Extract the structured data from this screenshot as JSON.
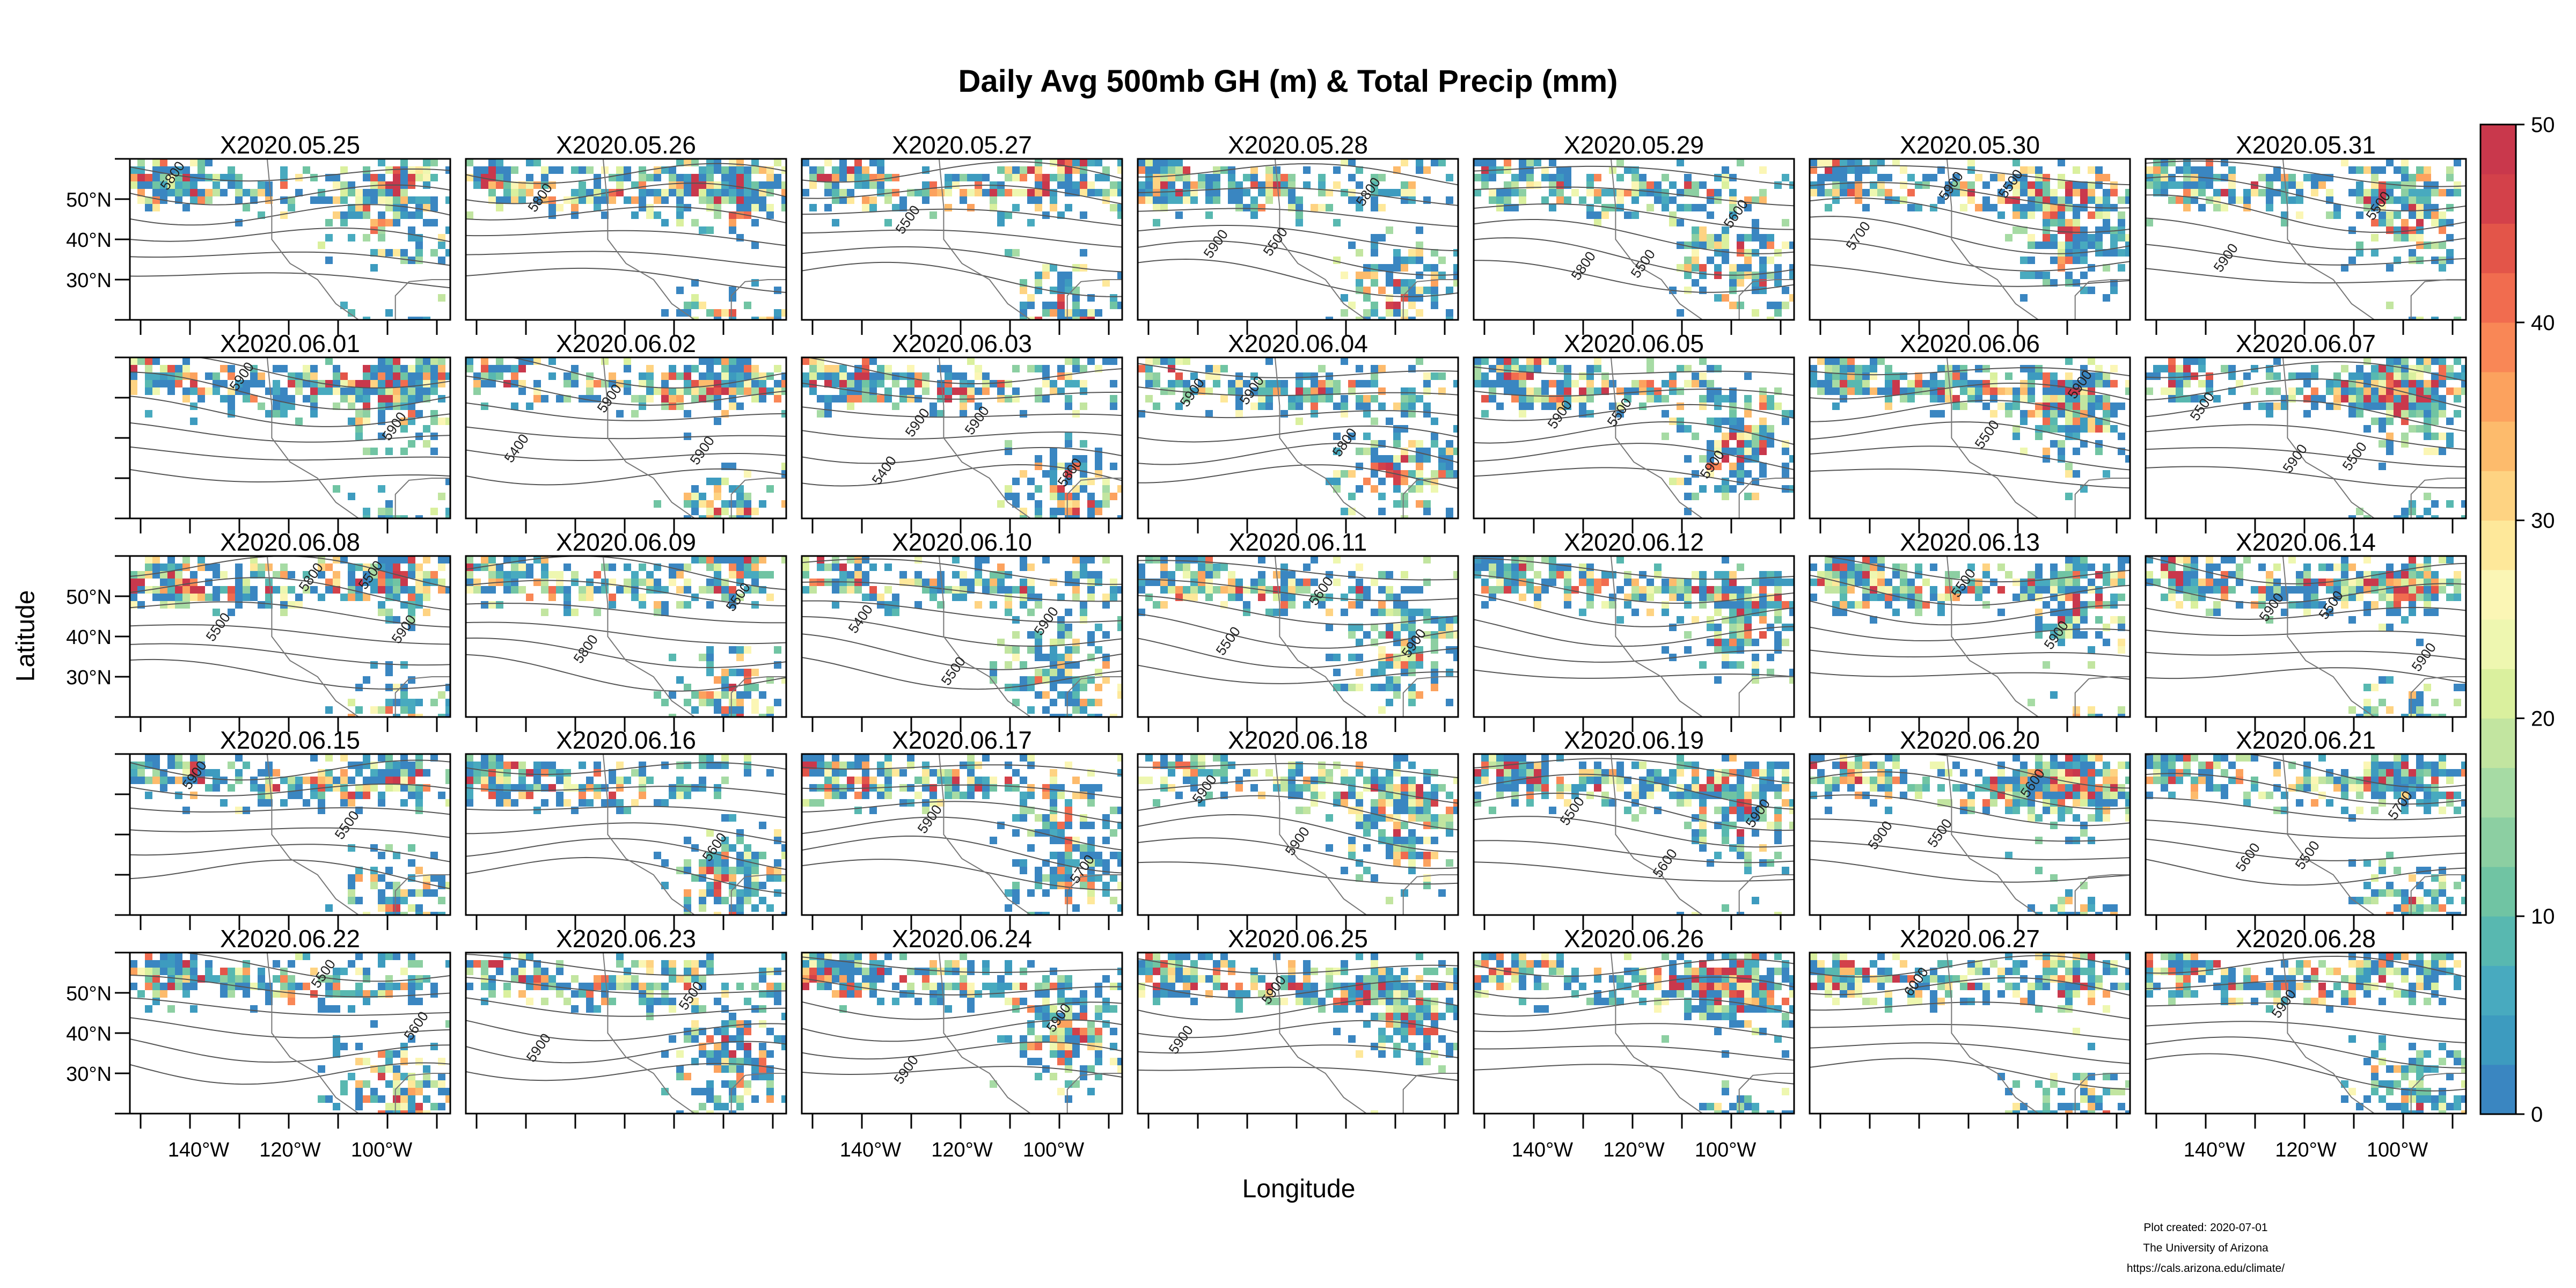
{
  "chart_data": {
    "type": "heatmap",
    "title": "Daily Avg 500mb GH (m) & Total Precip (mm)",
    "xlabel": "Longitude",
    "ylabel": "Latitude",
    "panel_titles": [
      "X2020.05.25",
      "X2020.05.26",
      "X2020.05.27",
      "X2020.05.28",
      "X2020.05.29",
      "X2020.05.30",
      "X2020.05.31",
      "X2020.06.01",
      "X2020.06.02",
      "X2020.06.03",
      "X2020.06.04",
      "X2020.06.05",
      "X2020.06.06",
      "X2020.06.07",
      "X2020.06.08",
      "X2020.06.09",
      "X2020.06.10",
      "X2020.06.11",
      "X2020.06.12",
      "X2020.06.13",
      "X2020.06.14",
      "X2020.06.15",
      "X2020.06.16",
      "X2020.06.17",
      "X2020.06.18",
      "X2020.06.19",
      "X2020.06.20",
      "X2020.06.21",
      "X2020.06.22",
      "X2020.06.23",
      "X2020.06.24",
      "X2020.06.25",
      "X2020.06.26",
      "X2020.06.27",
      "X2020.06.28"
    ],
    "lon_range": [
      -155,
      -85
    ],
    "lat_range": [
      20,
      60
    ],
    "x_ticks": [
      -140,
      -120,
      -100
    ],
    "x_tick_labels": [
      "140°W",
      "120°W",
      "100°W"
    ],
    "y_ticks": [
      30,
      40,
      50
    ],
    "y_tick_labels": [
      "30°N",
      "40°N",
      "50°N"
    ],
    "colorbar": {
      "label": "Total Precip (mm)",
      "range": [
        0,
        50
      ],
      "ticks": [
        0,
        10,
        20,
        30,
        40,
        50
      ],
      "tick_labels": [
        "0",
        "10",
        "20",
        "30",
        "40",
        "50"
      ],
      "colors": [
        "#3a86c1",
        "#3d9bbf",
        "#48aabf",
        "#58b8b0",
        "#70c4a3",
        "#8ccfa2",
        "#a6dba4",
        "#c2e5a0",
        "#daf09e",
        "#eef7b0",
        "#fbf6b5",
        "#fee89a",
        "#fed382",
        "#fdbb6c",
        "#fca25e",
        "#f98756",
        "#f16c4f",
        "#e35549",
        "#d3414a",
        "#c9384c"
      ]
    },
    "contour_labels": [
      [
        "5800"
      ],
      [
        "5800"
      ],
      [
        "5500"
      ],
      [
        "5500",
        "5800",
        "5900"
      ],
      [
        "5500",
        "5600",
        "5800"
      ],
      [
        "5500",
        "5700",
        "5900"
      ],
      [
        "5500",
        "5900"
      ],
      [
        "5900",
        "5900"
      ],
      [
        "5400",
        "5900",
        "5900"
      ],
      [
        "5400",
        "5900",
        "5800",
        "5900"
      ],
      [
        "5900",
        "5800",
        "5900"
      ],
      [
        "5500",
        "5900",
        "5900"
      ],
      [
        "5500",
        "5900"
      ],
      [
        "5500",
        "5500",
        "5900"
      ],
      [
        "5500",
        "5500",
        "5800",
        "5900"
      ],
      [
        "5500",
        "5800"
      ],
      [
        "5400",
        "5500",
        "5900"
      ],
      [
        "5500",
        "5600",
        "5900"
      ],
      [],
      [
        "5500",
        "5900"
      ],
      [
        "5500",
        "5900",
        "5900"
      ],
      [
        "5500",
        "5900"
      ],
      [
        "5600"
      ],
      [
        "5700",
        "5900"
      ],
      [
        "5900",
        "5900"
      ],
      [
        "5500",
        "5600",
        "5900"
      ],
      [
        "5500",
        "5600",
        "5900"
      ],
      [
        "5500",
        "5700",
        "5600"
      ],
      [
        "5500",
        "5600"
      ],
      [
        "5500",
        "5900"
      ],
      [
        "5900",
        "5900"
      ],
      [
        "5900",
        "5900"
      ],
      [],
      [
        "6000"
      ],
      [
        "5900"
      ]
    ],
    "grid": false
  },
  "credits": {
    "line1": "Plot created: 2020-07-01",
    "line2": "The University of Arizona",
    "line3": "https://cals.arizona.edu/climate/"
  }
}
